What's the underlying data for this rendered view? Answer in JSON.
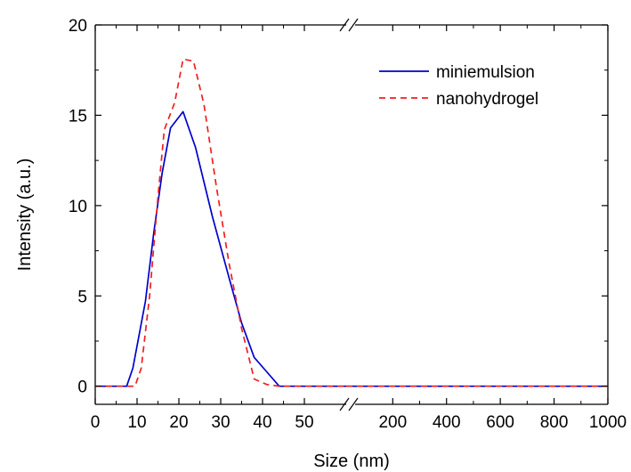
{
  "chart_data": {
    "type": "line",
    "xlabel": "Size (nm)",
    "ylabel": "Intensity (a.u.)",
    "ylim": [
      -1,
      20
    ],
    "yticks": [
      0,
      5,
      10,
      15,
      20
    ],
    "x_axis": {
      "broken": true,
      "segments": [
        {
          "range": [
            0,
            60
          ],
          "ticks": [
            0,
            10,
            20,
            30,
            40,
            50
          ]
        },
        {
          "range": [
            60,
            1000
          ],
          "ticks": [
            200,
            400,
            600,
            800,
            1000
          ]
        }
      ]
    },
    "grid": false,
    "legend_position": "top-right",
    "series": [
      {
        "name": "miniemulsion",
        "color": "#0000cc",
        "style": "solid",
        "points": [
          [
            0,
            0
          ],
          [
            7.5,
            0
          ],
          [
            9,
            1
          ],
          [
            12,
            4.7
          ],
          [
            14,
            8.5
          ],
          [
            16,
            11.8
          ],
          [
            18,
            14.3
          ],
          [
            21,
            15.2
          ],
          [
            24,
            13.2
          ],
          [
            28,
            9.4
          ],
          [
            32,
            6
          ],
          [
            35,
            3.5
          ],
          [
            38,
            1.6
          ],
          [
            41,
            0.8
          ],
          [
            44,
            0
          ],
          [
            60,
            0
          ],
          [
            80,
            0
          ],
          [
            200,
            0
          ],
          [
            400,
            0
          ],
          [
            600,
            0
          ],
          [
            800,
            0
          ],
          [
            1000,
            0
          ]
        ]
      },
      {
        "name": "nanohydrogel",
        "color": "#ee2020",
        "style": "dashed",
        "points": [
          [
            0,
            0
          ],
          [
            9.5,
            0
          ],
          [
            11,
            1
          ],
          [
            13,
            5
          ],
          [
            15,
            10.5
          ],
          [
            16.5,
            14.2
          ],
          [
            19,
            15.7
          ],
          [
            21,
            18.1
          ],
          [
            23.5,
            18
          ],
          [
            26,
            15.6
          ],
          [
            29,
            11
          ],
          [
            32,
            6.8
          ],
          [
            35,
            3.2
          ],
          [
            38,
            0.4
          ],
          [
            41,
            0.1
          ],
          [
            44,
            0
          ],
          [
            60,
            0
          ],
          [
            80,
            0
          ],
          [
            200,
            0
          ],
          [
            400,
            0
          ],
          [
            600,
            0
          ],
          [
            800,
            0
          ],
          [
            1000,
            0
          ]
        ]
      }
    ]
  }
}
